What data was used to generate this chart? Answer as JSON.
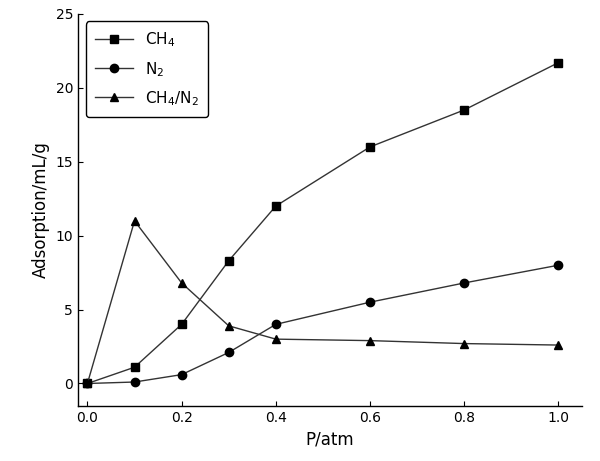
{
  "CH4_x": [
    0.0,
    0.1,
    0.2,
    0.3,
    0.4,
    0.6,
    0.8,
    1.0
  ],
  "CH4_y": [
    0.0,
    1.1,
    4.0,
    8.3,
    12.0,
    16.0,
    18.5,
    21.7
  ],
  "N2_x": [
    0.0,
    0.1,
    0.2,
    0.3,
    0.4,
    0.6,
    0.8,
    1.0
  ],
  "N2_y": [
    0.0,
    0.1,
    0.6,
    2.1,
    4.0,
    5.5,
    6.8,
    8.0
  ],
  "ratio_x": [
    0.0,
    0.1,
    0.2,
    0.3,
    0.4,
    0.6,
    0.8,
    1.0
  ],
  "ratio_y": [
    0.0,
    11.0,
    6.8,
    3.9,
    3.0,
    2.9,
    2.7,
    2.6
  ],
  "xlabel": "P/atm",
  "ylabel": "Adsorption/mL/g",
  "xlim": [
    -0.02,
    1.05
  ],
  "ylim": [
    -1.5,
    25
  ],
  "yticks": [
    0,
    5,
    10,
    15,
    20,
    25
  ],
  "xticks": [
    0.0,
    0.2,
    0.4,
    0.6,
    0.8,
    1.0
  ],
  "line_color": "#333333",
  "legend_CH4": "CH$_4$",
  "legend_N2": "N$_2$",
  "legend_ratio": "CH$_4$/N$_2$",
  "marker_CH4": "s",
  "marker_N2": "o",
  "marker_ratio": "^",
  "markersize": 6,
  "linewidth": 1.0,
  "background_color": "#ffffff"
}
